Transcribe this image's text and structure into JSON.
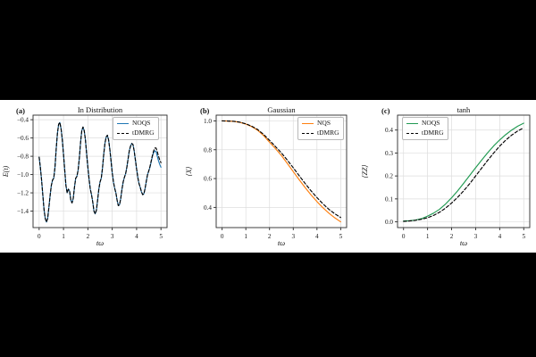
{
  "figure": {
    "page_background": "#000000",
    "panel_background": "#ffffff",
    "grid_color": "#dddddd",
    "spine_color": "#2b2b2b"
  },
  "chart_data": [
    {
      "type": "line",
      "panel_label": "(a)",
      "title": "In Distribution",
      "xlabel": "tω",
      "ylabel": "E(t)",
      "xlim": [
        -0.25,
        5.25
      ],
      "ylim": [
        -1.58,
        -0.35
      ],
      "xticks": [
        0,
        1,
        2,
        3,
        4,
        5
      ],
      "xtick_labels": [
        "0",
        "1",
        "2",
        "3",
        "4",
        "5"
      ],
      "yticks": [
        -0.4,
        -0.6,
        -0.8,
        -1.0,
        -1.2,
        -1.4
      ],
      "ytick_labels": [
        "−0.4",
        "−0.6",
        "−0.8",
        "−1.0",
        "−1.2",
        "−1.4"
      ],
      "grid": true,
      "legend": {
        "position": "top-right",
        "entries": [
          {
            "label": "NOQS",
            "color": "#1f77b4",
            "dash": "solid"
          },
          {
            "label": "tDMRG",
            "color": "#000000",
            "dash": "dashed"
          }
        ]
      },
      "series": [
        {
          "name": "NOQS",
          "color": "#1f77b4",
          "dash": "solid",
          "t_start": 0,
          "t_end": 5,
          "values": [
            -0.81,
            -0.92,
            -1.06,
            -1.22,
            -1.38,
            -1.48,
            -1.52,
            -1.48,
            -1.36,
            -1.23,
            -1.12,
            -1.06,
            -1.04,
            -0.92,
            -0.72,
            -0.55,
            -0.45,
            -0.43,
            -0.5,
            -0.62,
            -0.78,
            -0.95,
            -1.12,
            -1.2,
            -1.16,
            -1.18,
            -1.28,
            -1.31,
            -1.26,
            -1.14,
            -1.04,
            -1.02,
            -0.95,
            -0.82,
            -0.65,
            -0.52,
            -0.48,
            -0.52,
            -0.62,
            -0.78,
            -0.92,
            -1.05,
            -1.16,
            -1.22,
            -1.3,
            -1.4,
            -1.43,
            -1.39,
            -1.28,
            -1.16,
            -1.08,
            -1.04,
            -0.93,
            -0.78,
            -0.66,
            -0.59,
            -0.57,
            -0.62,
            -0.72,
            -0.85,
            -0.98,
            -1.08,
            -1.15,
            -1.2,
            -1.28,
            -1.34,
            -1.33,
            -1.26,
            -1.16,
            -1.08,
            -1.03,
            -0.99,
            -0.92,
            -0.83,
            -0.74,
            -0.69,
            -0.66,
            -0.67,
            -0.74,
            -0.84,
            -0.94,
            -1.03,
            -1.1,
            -1.14,
            -1.19,
            -1.22,
            -1.21,
            -1.15,
            -1.07,
            -1.0,
            -0.96,
            -0.92,
            -0.86,
            -0.8,
            -0.76,
            -0.74,
            -0.75,
            -0.8,
            -0.85,
            -0.89,
            -0.92
          ]
        },
        {
          "name": "tDMRG",
          "color": "#000000",
          "dash": "dashed",
          "t_start": 0,
          "t_end": 5,
          "values": [
            -0.81,
            -0.92,
            -1.06,
            -1.22,
            -1.38,
            -1.48,
            -1.52,
            -1.48,
            -1.36,
            -1.23,
            -1.12,
            -1.06,
            -1.04,
            -0.92,
            -0.72,
            -0.55,
            -0.45,
            -0.43,
            -0.5,
            -0.62,
            -0.78,
            -0.95,
            -1.12,
            -1.2,
            -1.16,
            -1.18,
            -1.28,
            -1.31,
            -1.26,
            -1.14,
            -1.04,
            -1.02,
            -0.95,
            -0.82,
            -0.65,
            -0.52,
            -0.48,
            -0.52,
            -0.62,
            -0.78,
            -0.92,
            -1.05,
            -1.16,
            -1.22,
            -1.3,
            -1.4,
            -1.43,
            -1.39,
            -1.28,
            -1.16,
            -1.08,
            -1.04,
            -0.93,
            -0.78,
            -0.66,
            -0.59,
            -0.57,
            -0.62,
            -0.72,
            -0.85,
            -0.98,
            -1.08,
            -1.15,
            -1.2,
            -1.28,
            -1.34,
            -1.33,
            -1.26,
            -1.16,
            -1.08,
            -1.03,
            -0.99,
            -0.92,
            -0.83,
            -0.74,
            -0.69,
            -0.66,
            -0.67,
            -0.74,
            -0.84,
            -0.94,
            -1.03,
            -1.1,
            -1.14,
            -1.19,
            -1.22,
            -1.21,
            -1.15,
            -1.07,
            -1.0,
            -0.96,
            -0.91,
            -0.85,
            -0.79,
            -0.74,
            -0.71,
            -0.71,
            -0.75,
            -0.8,
            -0.84,
            -0.87
          ]
        }
      ]
    },
    {
      "type": "line",
      "panel_label": "(b)",
      "title": "Gaussian",
      "xlabel": "tω",
      "ylabel": "⟨X⟩",
      "xlim": [
        -0.25,
        5.25
      ],
      "ylim": [
        0.26,
        1.04
      ],
      "xticks": [
        0,
        1,
        2,
        3,
        4,
        5
      ],
      "xtick_labels": [
        "0",
        "1",
        "2",
        "3",
        "4",
        "5"
      ],
      "yticks": [
        0.4,
        0.6,
        0.8,
        1.0
      ],
      "ytick_labels": [
        "0.4",
        "0.6",
        "0.8",
        "1.0"
      ],
      "grid": true,
      "legend": {
        "position": "top-right",
        "entries": [
          {
            "label": "NQS",
            "color": "#ff7f0e",
            "dash": "solid"
          },
          {
            "label": "tDMRG",
            "color": "#000000",
            "dash": "dashed"
          }
        ]
      },
      "series": [
        {
          "name": "NQS",
          "color": "#ff7f0e",
          "dash": "solid",
          "t_start": 0,
          "t_end": 5,
          "values": [
            1.0,
            0.999,
            0.996,
            0.99,
            0.978,
            0.96,
            0.935,
            0.898,
            0.852,
            0.808,
            0.76,
            0.705,
            0.648,
            0.592,
            0.538,
            0.487,
            0.44,
            0.398,
            0.36,
            0.328,
            0.3
          ]
        },
        {
          "name": "tDMRG",
          "color": "#000000",
          "dash": "dashed",
          "t_start": 0,
          "t_end": 5,
          "values": [
            1.0,
            0.999,
            0.997,
            0.991,
            0.98,
            0.963,
            0.94,
            0.906,
            0.865,
            0.822,
            0.778,
            0.728,
            0.675,
            0.62,
            0.566,
            0.515,
            0.468,
            0.425,
            0.387,
            0.356,
            0.33
          ]
        }
      ]
    },
    {
      "type": "line",
      "panel_label": "(c)",
      "title": "tanh",
      "xlabel": "tω",
      "ylabel": "⟨ZZ⟩",
      "xlim": [
        -0.25,
        5.25
      ],
      "ylim": [
        -0.025,
        0.465
      ],
      "xticks": [
        0,
        1,
        2,
        3,
        4,
        5
      ],
      "xtick_labels": [
        "0",
        "1",
        "2",
        "3",
        "4",
        "5"
      ],
      "yticks": [
        0.0,
        0.1,
        0.2,
        0.3,
        0.4
      ],
      "ytick_labels": [
        "0.0",
        "0.1",
        "0.2",
        "0.3",
        "0.4"
      ],
      "grid": true,
      "legend": {
        "position": "top-left",
        "entries": [
          {
            "label": "NOQS",
            "color": "#219a52",
            "dash": "solid"
          },
          {
            "label": "tDMRG",
            "color": "#000000",
            "dash": "dashed"
          }
        ]
      },
      "series": [
        {
          "name": "NOQS",
          "color": "#219a52",
          "dash": "solid",
          "t_start": 0,
          "t_end": 5,
          "values": [
            0.004,
            0.005,
            0.008,
            0.014,
            0.025,
            0.038,
            0.055,
            0.078,
            0.105,
            0.135,
            0.168,
            0.202,
            0.236,
            0.269,
            0.301,
            0.331,
            0.357,
            0.38,
            0.4,
            0.417,
            0.43
          ]
        },
        {
          "name": "tDMRG",
          "color": "#000000",
          "dash": "dashed",
          "t_start": 0,
          "t_end": 5,
          "values": [
            0.002,
            0.004,
            0.007,
            0.011,
            0.018,
            0.028,
            0.042,
            0.06,
            0.082,
            0.107,
            0.135,
            0.166,
            0.2,
            0.234,
            0.268,
            0.3,
            0.33,
            0.356,
            0.378,
            0.396,
            0.41
          ]
        }
      ]
    }
  ]
}
